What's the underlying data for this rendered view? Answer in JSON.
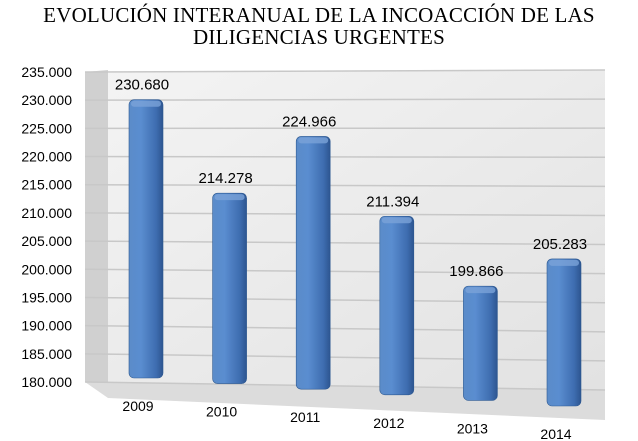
{
  "chart_data": {
    "type": "bar",
    "title": "EVOLUCIÓN INTERANUAL DE LA INCOACCIÓN DE LAS DILIGENCIAS URGENTES",
    "title_lines": [
      "EVOLUCIÓN INTERANUAL DE LA INCOACCIÓN DE LAS",
      "DILIGENCIAS URGENTES"
    ],
    "categories": [
      "2009",
      "2010",
      "2011",
      "2012",
      "2013",
      "2014"
    ],
    "values": [
      230680,
      214278,
      224966,
      211394,
      199866,
      205283
    ],
    "data_labels": [
      "230.680",
      "214.278",
      "224.966",
      "211.394",
      "199.866",
      "205.283"
    ],
    "ylim": [
      180000,
      235000
    ],
    "y_ticks": [
      "180.000",
      "185.000",
      "190.000",
      "195.000",
      "200.000",
      "205.000",
      "210.000",
      "215.000",
      "220.000",
      "225.000",
      "230.000",
      "235.000"
    ],
    "xlabel": "",
    "ylabel": "",
    "grid": true,
    "style": "3d-perspective",
    "bar_color": "#4F81BD",
    "legend": "none"
  }
}
